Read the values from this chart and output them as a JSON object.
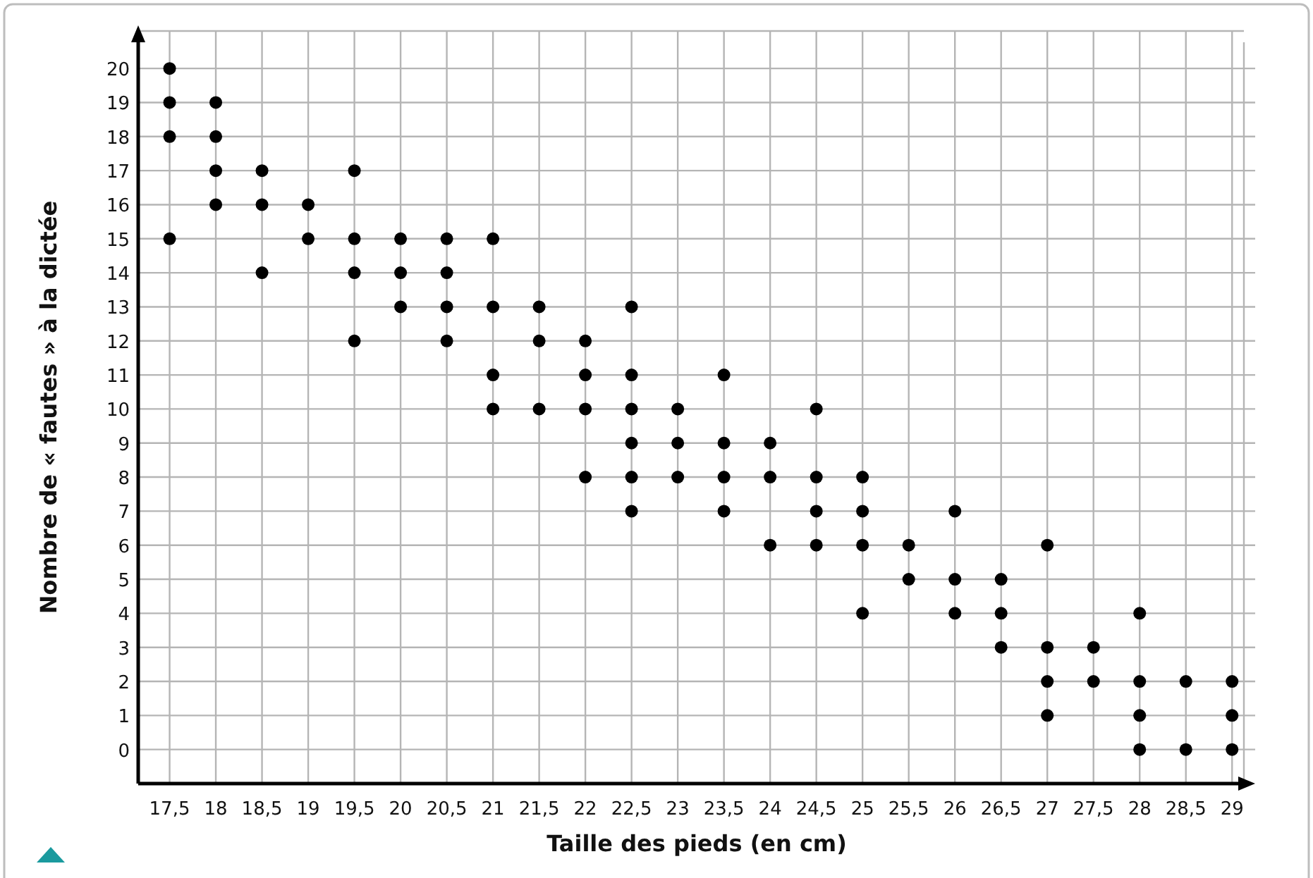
{
  "chart_data": {
    "type": "scatter",
    "xlabel": "Taille des pieds (en cm)",
    "ylabel": "Nombre de « fautes » à la dictée",
    "marker": "circle",
    "grid": true,
    "xlim": [
      17.16,
      29.25
    ],
    "ylim": [
      -1,
      21.1
    ],
    "xticks": [
      {
        "value": 17.5,
        "label": "17,5"
      },
      18,
      {
        "value": 18.5,
        "label": "18,5"
      },
      19,
      {
        "value": 19.5,
        "label": "19,5"
      },
      20,
      {
        "value": 20.5,
        "label": "20,5"
      },
      21,
      {
        "value": 21.5,
        "label": "21,5"
      },
      22,
      {
        "value": 22.5,
        "label": "22,5"
      },
      23,
      {
        "value": 23.5,
        "label": "23,5"
      },
      24,
      {
        "value": 24.5,
        "label": "24,5"
      },
      25,
      {
        "value": 25.5,
        "label": "25,5"
      },
      26,
      {
        "value": 26.5,
        "label": "26,5"
      },
      27,
      {
        "value": 27.5,
        "label": "27,5"
      },
      28,
      {
        "value": 28.5,
        "label": "28,5"
      },
      29
    ],
    "yticks": [
      0,
      1,
      2,
      3,
      4,
      5,
      6,
      7,
      8,
      9,
      10,
      11,
      12,
      13,
      14,
      15,
      16,
      17,
      18,
      19,
      20
    ],
    "series": [
      {
        "color": "#000000",
        "x": [
          17.5,
          17.5,
          17.5,
          17.5,
          18,
          18,
          18,
          18,
          18.5,
          18.5,
          18.5,
          19,
          19,
          19.5,
          19.5,
          19.5,
          19.5,
          20,
          20,
          20,
          20.5,
          20.5,
          20.5,
          20.5,
          21,
          21,
          21,
          21,
          21.5,
          21.5,
          21.5,
          22,
          22,
          22,
          22,
          22.5,
          22.5,
          22.5,
          22.5,
          22.5,
          22.5,
          23,
          23,
          23,
          23.5,
          23.5,
          23.5,
          23.5,
          24,
          24,
          24,
          24.5,
          24.5,
          24.5,
          24.5,
          25,
          25,
          25,
          25,
          25.5,
          25.5,
          26,
          26,
          26,
          26.5,
          26.5,
          26.5,
          27,
          27,
          27,
          27,
          27.5,
          27.5,
          28,
          28,
          28,
          28,
          28.5,
          28.5,
          29,
          29,
          29
        ],
        "values": [
          20,
          19,
          18,
          15,
          19,
          18,
          17,
          16,
          17,
          16,
          14,
          16,
          15,
          17,
          15,
          14,
          12,
          15,
          14,
          13,
          15,
          14,
          13,
          12,
          15,
          13,
          11,
          10,
          13,
          12,
          10,
          12,
          11,
          10,
          8,
          13,
          11,
          10,
          9,
          8,
          7,
          10,
          9,
          8,
          11,
          9,
          8,
          7,
          9,
          8,
          6,
          10,
          8,
          7,
          6,
          8,
          7,
          6,
          4,
          6,
          5,
          7,
          5,
          4,
          5,
          4,
          3,
          6,
          3,
          2,
          1,
          3,
          2,
          4,
          2,
          1,
          0,
          2,
          0,
          2,
          1,
          0
        ]
      }
    ]
  }
}
